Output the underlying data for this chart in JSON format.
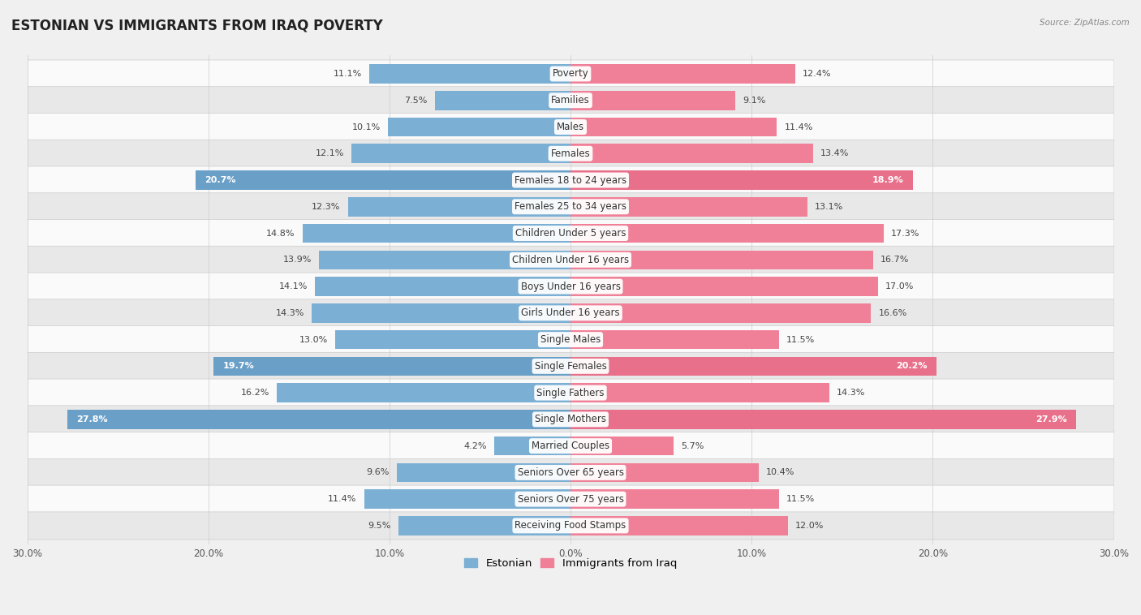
{
  "title": "ESTONIAN VS IMMIGRANTS FROM IRAQ POVERTY",
  "source": "Source: ZipAtlas.com",
  "categories": [
    "Poverty",
    "Families",
    "Males",
    "Females",
    "Females 18 to 24 years",
    "Females 25 to 34 years",
    "Children Under 5 years",
    "Children Under 16 years",
    "Boys Under 16 years",
    "Girls Under 16 years",
    "Single Males",
    "Single Females",
    "Single Fathers",
    "Single Mothers",
    "Married Couples",
    "Seniors Over 65 years",
    "Seniors Over 75 years",
    "Receiving Food Stamps"
  ],
  "estonian": [
    11.1,
    7.5,
    10.1,
    12.1,
    20.7,
    12.3,
    14.8,
    13.9,
    14.1,
    14.3,
    13.0,
    19.7,
    16.2,
    27.8,
    4.2,
    9.6,
    11.4,
    9.5
  ],
  "iraq": [
    12.4,
    9.1,
    11.4,
    13.4,
    18.9,
    13.1,
    17.3,
    16.7,
    17.0,
    16.6,
    11.5,
    20.2,
    14.3,
    27.9,
    5.7,
    10.4,
    11.5,
    12.0
  ],
  "estonian_color": "#7bafd4",
  "iraq_color": "#f08098",
  "estonian_highlight_color": "#6aa0c8",
  "iraq_highlight_color": "#e8708a",
  "highlight_rows": [
    4,
    11,
    13
  ],
  "bar_height": 0.72,
  "xlim": 30.0,
  "background_color": "#f0f0f0",
  "row_bg_colors": [
    "#fafafa",
    "#e8e8e8"
  ],
  "title_fontsize": 12,
  "label_fontsize": 8.5,
  "value_fontsize": 8,
  "legend_fontsize": 9.5
}
